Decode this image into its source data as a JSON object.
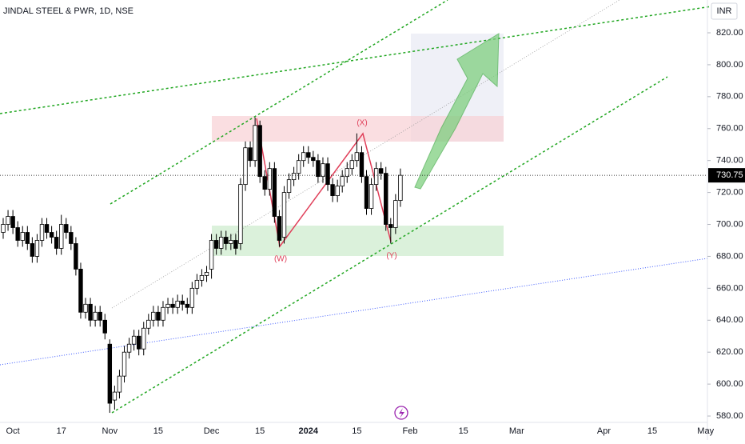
{
  "chart_data": {
    "type": "candlestick",
    "title": "JINDAL STEEL & PWR, 1D, NSE",
    "currency": "INR",
    "last_price": 730.75,
    "last_price_label": "730.75",
    "annotations": [
      "(W)",
      "(X)",
      "(Y)"
    ],
    "open": [
      695,
      700,
      705,
      698,
      690,
      695,
      688,
      680,
      690,
      700,
      695,
      692,
      685,
      700,
      695,
      688,
      672,
      645,
      650,
      640,
      645,
      640,
      625,
      590,
      595,
      605,
      620,
      625,
      630,
      622,
      635,
      640,
      645,
      640,
      648,
      650,
      648,
      652,
      650,
      648,
      660,
      665,
      668,
      672,
      690,
      685,
      692,
      688,
      690,
      688,
      725,
      748,
      740,
      762,
      730,
      722,
      735,
      705,
      692,
      720,
      728,
      732,
      740,
      745,
      742,
      740,
      730,
      738,
      725,
      718,
      724,
      730,
      735,
      740,
      745,
      730,
      710,
      725,
      735,
      732,
      700,
      698,
      715
    ],
    "high": [
      704,
      709,
      709,
      702,
      699,
      699,
      692,
      694,
      704,
      704,
      699,
      696,
      706,
      704,
      699,
      692,
      676,
      654,
      654,
      649,
      649,
      644,
      628,
      599,
      609,
      624,
      629,
      634,
      634,
      639,
      644,
      649,
      649,
      652,
      654,
      654,
      656,
      656,
      654,
      664,
      669,
      672,
      674,
      694,
      694,
      696,
      696,
      694,
      694,
      729,
      752,
      752,
      767,
      765,
      734,
      739,
      739,
      709,
      724,
      732,
      736,
      744,
      749,
      749,
      746,
      744,
      742,
      742,
      729,
      728,
      734,
      739,
      744,
      757,
      749,
      734,
      729,
      739,
      739,
      736,
      704,
      719,
      735
    ],
    "low": [
      691,
      696,
      694,
      686,
      686,
      684,
      676,
      676,
      686,
      691,
      688,
      681,
      681,
      691,
      684,
      668,
      641,
      641,
      636,
      636,
      636,
      628,
      582,
      584,
      591,
      601,
      616,
      621,
      618,
      618,
      631,
      636,
      636,
      636,
      644,
      644,
      644,
      646,
      644,
      644,
      656,
      661,
      664,
      666,
      681,
      681,
      684,
      684,
      681,
      684,
      721,
      736,
      736,
      726,
      718,
      718,
      701,
      686,
      688,
      716,
      724,
      728,
      736,
      738,
      736,
      726,
      726,
      721,
      714,
      714,
      720,
      726,
      731,
      736,
      726,
      706,
      706,
      721,
      728,
      696,
      688,
      694,
      711
    ],
    "close": [
      700,
      705,
      698,
      690,
      695,
      688,
      680,
      690,
      700,
      695,
      692,
      685,
      700,
      695,
      688,
      672,
      645,
      650,
      640,
      645,
      640,
      632,
      588,
      595,
      605,
      620,
      625,
      630,
      622,
      635,
      640,
      645,
      640,
      648,
      650,
      648,
      652,
      650,
      648,
      660,
      665,
      668,
      670,
      690,
      685,
      692,
      688,
      690,
      685,
      725,
      748,
      740,
      762,
      730,
      722,
      735,
      705,
      690,
      720,
      728,
      732,
      740,
      745,
      742,
      740,
      730,
      738,
      725,
      718,
      724,
      730,
      735,
      740,
      745,
      730,
      710,
      725,
      735,
      732,
      700,
      698,
      715,
      730.75
    ],
    "ylim": [
      575,
      830
    ],
    "yticks": [
      {
        "value": 580,
        "label": "580.00"
      },
      {
        "value": 600,
        "label": "600.00"
      },
      {
        "value": 620,
        "label": "620.00"
      },
      {
        "value": 640,
        "label": "640.00"
      },
      {
        "value": 660,
        "label": "660.00"
      },
      {
        "value": 680,
        "label": "680.00"
      },
      {
        "value": 700,
        "label": "700.00"
      },
      {
        "value": 720,
        "label": "720.00"
      },
      {
        "value": 740,
        "label": "740.00"
      },
      {
        "value": 760,
        "label": "760.00"
      },
      {
        "value": 780,
        "label": "780.00"
      },
      {
        "value": 800,
        "label": "800.00"
      },
      {
        "value": 820,
        "label": "820.00"
      }
    ],
    "xticks": [
      {
        "value": 2,
        "label": "Oct"
      },
      {
        "value": 12,
        "label": "17"
      },
      {
        "value": 22,
        "label": "Nov"
      },
      {
        "value": 32,
        "label": "15"
      },
      {
        "value": 43,
        "label": "Dec"
      },
      {
        "value": 53,
        "label": "15"
      },
      {
        "value": 63,
        "label": "2024"
      },
      {
        "value": 73,
        "label": "15"
      },
      {
        "value": 84,
        "label": "Feb"
      },
      {
        "value": 95,
        "label": "15"
      },
      {
        "value": 106,
        "label": "Mar"
      },
      {
        "value": 124,
        "label": "Apr"
      },
      {
        "value": 134,
        "label": "15"
      },
      {
        "value": 145,
        "label": "May"
      }
    ],
    "up_color": "#ffffff",
    "down_color": "#000000"
  }
}
